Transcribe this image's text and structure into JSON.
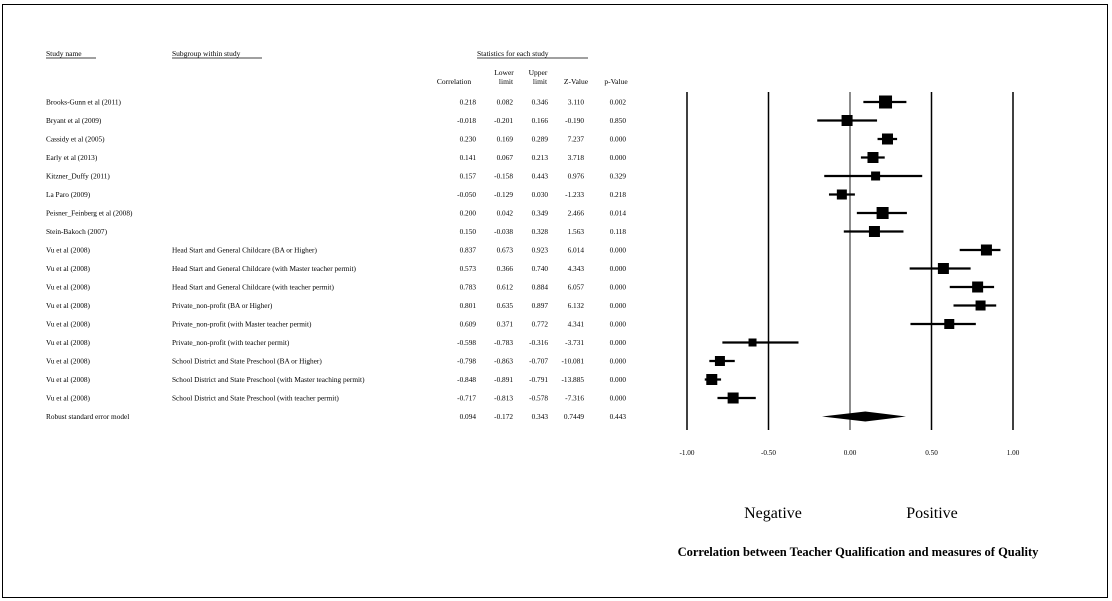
{
  "headers": {
    "study_name": "Study name",
    "subgroup": "Subgroup within study",
    "stats_group": "Statistics for each study",
    "correlation": "Correlation",
    "lower": "Lower",
    "upper": "Upper",
    "limit": "limit",
    "z": "Z-Value",
    "p": "p-Value"
  },
  "labels": {
    "negative": "Negative",
    "positive": "Positive",
    "x_title": "Correlation between Teacher Qualification and measures of Quality"
  },
  "chart_data": {
    "type": "forest",
    "x_range": [
      -1.0,
      1.0
    ],
    "x_ticks": [
      "-1.00",
      "-0.50",
      "0.00",
      "0.50",
      "1.00"
    ],
    "x_tick_values": [
      -1.0,
      -0.5,
      0.0,
      0.5,
      1.0
    ],
    "rows": [
      {
        "study": "Brooks-Gunn et al (2011)",
        "subgroup": "",
        "correlation": "0.218",
        "lower": "0.082",
        "upper": "0.346",
        "z": "3.110",
        "p": "0.002",
        "r": 0.218,
        "lo": 0.082,
        "hi": 0.346,
        "w": 13
      },
      {
        "study": "Bryant et al (2009)",
        "subgroup": "",
        "correlation": "-0.018",
        "lower": "-0.201",
        "upper": "0.166",
        "z": "-0.190",
        "p": "0.850",
        "r": -0.018,
        "lo": -0.201,
        "hi": 0.166,
        "w": 11
      },
      {
        "study": "Cassidy et al (2005)",
        "subgroup": "",
        "correlation": "0.230",
        "lower": "0.169",
        "upper": "0.289",
        "z": "7.237",
        "p": "0.000",
        "r": 0.23,
        "lo": 0.169,
        "hi": 0.289,
        "w": 11
      },
      {
        "study": "Early et al (2013)",
        "subgroup": "",
        "correlation": "0.141",
        "lower": "0.067",
        "upper": "0.213",
        "z": "3.718",
        "p": "0.000",
        "r": 0.141,
        "lo": 0.067,
        "hi": 0.213,
        "w": 11
      },
      {
        "study": "Kitzner_Duffy (2011)",
        "subgroup": "",
        "correlation": "0.157",
        "lower": "-0.158",
        "upper": "0.443",
        "z": "0.976",
        "p": "0.329",
        "r": 0.157,
        "lo": -0.158,
        "hi": 0.443,
        "w": 9
      },
      {
        "study": "La Paro (2009)",
        "subgroup": "",
        "correlation": "-0.050",
        "lower": "-0.129",
        "upper": "0.030",
        "z": "-1.233",
        "p": "0.218",
        "r": -0.05,
        "lo": -0.129,
        "hi": 0.03,
        "w": 10
      },
      {
        "study": "Peisner_Feinberg et al (2008)",
        "subgroup": "",
        "correlation": "0.200",
        "lower": "0.042",
        "upper": "0.349",
        "z": "2.466",
        "p": "0.014",
        "r": 0.2,
        "lo": 0.042,
        "hi": 0.349,
        "w": 12
      },
      {
        "study": "Stein-Bakoch (2007)",
        "subgroup": "",
        "correlation": "0.150",
        "lower": "-0.038",
        "upper": "0.328",
        "z": "1.563",
        "p": "0.118",
        "r": 0.15,
        "lo": -0.038,
        "hi": 0.328,
        "w": 11
      },
      {
        "study": "Vu et al (2008)",
        "subgroup": "Head Start and General Childcare (BA or Higher)",
        "correlation": "0.837",
        "lower": "0.673",
        "upper": "0.923",
        "z": "6.014",
        "p": "0.000",
        "r": 0.837,
        "lo": 0.673,
        "hi": 0.923,
        "w": 11
      },
      {
        "study": "Vu et al (2008)",
        "subgroup": "Head Start and General Childcare (with Master teacher permit)",
        "correlation": "0.573",
        "lower": "0.366",
        "upper": "0.740",
        "z": "4.343",
        "p": "0.000",
        "r": 0.573,
        "lo": 0.366,
        "hi": 0.74,
        "w": 11
      },
      {
        "study": "Vu et al (2008)",
        "subgroup": "Head Start and General Childcare (with teacher permit)",
        "correlation": "0.783",
        "lower": "0.612",
        "upper": "0.884",
        "z": "6.057",
        "p": "0.000",
        "r": 0.783,
        "lo": 0.612,
        "hi": 0.884,
        "w": 11
      },
      {
        "study": "Vu et al (2008)",
        "subgroup": "Private_non-profit (BA or Higher)",
        "correlation": "0.801",
        "lower": "0.635",
        "upper": "0.897",
        "z": "6.132",
        "p": "0.000",
        "r": 0.801,
        "lo": 0.635,
        "hi": 0.897,
        "w": 10
      },
      {
        "study": "Vu et al (2008)",
        "subgroup": "Private_non-profit (with Master teacher permit)",
        "correlation": "0.609",
        "lower": "0.371",
        "upper": "0.772",
        "z": "4.341",
        "p": "0.000",
        "r": 0.609,
        "lo": 0.371,
        "hi": 0.772,
        "w": 10
      },
      {
        "study": "Vu et al (2008)",
        "subgroup": "Private_non-profit (with teacher permit)",
        "correlation": "-0.598",
        "lower": "-0.783",
        "upper": "-0.316",
        "z": "-3.731",
        "p": "0.000",
        "r": -0.598,
        "lo": -0.783,
        "hi": -0.316,
        "w": 8
      },
      {
        "study": "Vu et al (2008)",
        "subgroup": "School District and State Preschool (BA or Higher)",
        "correlation": "-0.798",
        "lower": "-0.863",
        "upper": "-0.707",
        "z": "-10.081",
        "p": "0.000",
        "r": -0.798,
        "lo": -0.863,
        "hi": -0.707,
        "w": 10
      },
      {
        "study": "Vu et al (2008)",
        "subgroup": "School District and State Preschool (with Master teaching permit)",
        "correlation": "-0.848",
        "lower": "-0.891",
        "upper": "-0.791",
        "z": "-13.885",
        "p": "0.000",
        "r": -0.848,
        "lo": -0.891,
        "hi": -0.791,
        "w": 11
      },
      {
        "study": "Vu et al (2008)",
        "subgroup": "School District and State Preschool (with teacher permit)",
        "correlation": "-0.717",
        "lower": "-0.813",
        "upper": "-0.578",
        "z": "-7.316",
        "p": "0.000",
        "r": -0.717,
        "lo": -0.813,
        "hi": -0.578,
        "w": 11
      }
    ],
    "summary": {
      "study": "Robust standard error model",
      "correlation": "0.094",
      "lower": "-0.172",
      "upper": "0.343",
      "z": "0.7449",
      "p": "0.443",
      "r": 0.094,
      "lo": -0.172,
      "hi": 0.343
    }
  }
}
